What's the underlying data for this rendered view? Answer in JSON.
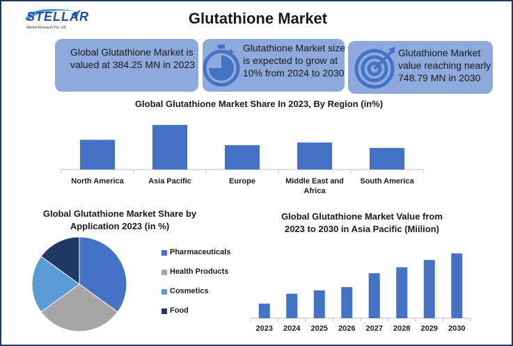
{
  "header": {
    "logo_text": "STELLAR",
    "logo_subtitle": "Market Research Pvt. Ltd.",
    "title": "Glutathione Market"
  },
  "cards": [
    {
      "text": "Global Glutathione Market is valued at 384.25 MN in 2023",
      "icon": "none"
    },
    {
      "text": "Glutathione Market size is expected to grow at 10% from 2024 to 2030",
      "icon": "stopwatch-icon"
    },
    {
      "text": "Glutathione Market value reaching nearly 748.79 MN in 2030",
      "icon": "target-icon"
    }
  ],
  "colors": {
    "card_bg": "#8ea9db",
    "bar": "#4472c4",
    "pharmaceuticals": "#4472c4",
    "health_products": "#a5a5a5",
    "cosmetics": "#5b9bd5",
    "food": "#203864",
    "icon": "#4472c4"
  },
  "chart_data": [
    {
      "type": "bar",
      "title": "Global Glutathione Market Share In 2023, By Region (in%)",
      "categories": [
        "North America",
        "Asia Pacific",
        "Europe",
        "Middle East and Africa",
        "South America"
      ],
      "values": [
        22,
        33,
        18,
        20,
        16
      ],
      "ylim": [
        0,
        36
      ],
      "grid": false,
      "xlabel": "",
      "ylabel": ""
    },
    {
      "type": "pie",
      "title": "Global Glutathione Market Share by Application  2023 (in %)",
      "categories": [
        "Pharmaceuticals",
        "Health Products",
        "Cosmetics",
        "Food"
      ],
      "values": [
        35,
        30,
        20,
        15
      ],
      "legend": "right"
    },
    {
      "type": "bar",
      "title": "Global Glutathione Market Value from 2023 to 2030 in Asia Pacific (Miilion)",
      "categories": [
        "2023",
        "2024",
        "2025",
        "2026",
        "2027",
        "2028",
        "2029",
        "2030"
      ],
      "values": [
        22,
        37,
        42,
        47,
        68,
        77,
        88,
        98
      ],
      "ylim": [
        0,
        105
      ],
      "grid": false,
      "xlabel": "",
      "ylabel": ""
    }
  ]
}
